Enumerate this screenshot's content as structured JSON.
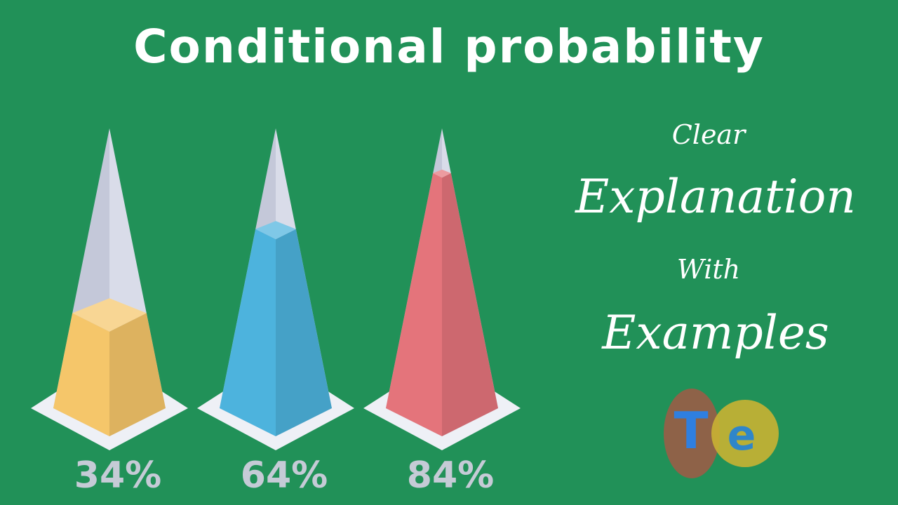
{
  "title": "Conditional probability",
  "tagline": {
    "line1": "Clear",
    "line2": "Explanation",
    "line3": "With",
    "line4": "Examples"
  },
  "logo": {
    "letter1": "T",
    "letter2": "e"
  },
  "pyramids": [
    {
      "label": "34%",
      "fill_fraction": 0.34,
      "color": "#f5c66a"
    },
    {
      "label": "64%",
      "fill_fraction": 0.64,
      "color": "#4db3dd"
    },
    {
      "label": "84%",
      "fill_fraction": 0.84,
      "color": "#e4747b"
    }
  ]
}
